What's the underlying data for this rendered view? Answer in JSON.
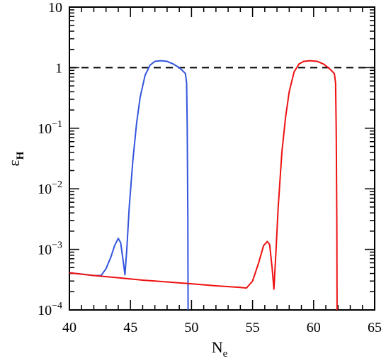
{
  "chart_data": {
    "type": "line",
    "xlabel": {
      "main": "N",
      "sub": "e"
    },
    "ylabel": {
      "main": "ε",
      "sub": "H"
    },
    "xlim": [
      40,
      65
    ],
    "ylim": [
      0.0001,
      10
    ],
    "y_scale": "log",
    "grid": false,
    "x_ticks": [
      {
        "value": 40,
        "label": "40"
      },
      {
        "value": 45,
        "label": "45"
      },
      {
        "value": 50,
        "label": "50"
      },
      {
        "value": 55,
        "label": "55"
      },
      {
        "value": 60,
        "label": "60"
      },
      {
        "value": 65,
        "label": "65"
      }
    ],
    "y_ticks": [
      {
        "value": 0.0001,
        "base": "10",
        "exp": "−4"
      },
      {
        "value": 0.001,
        "base": "10",
        "exp": "−3"
      },
      {
        "value": 0.01,
        "base": "10",
        "exp": "−2"
      },
      {
        "value": 0.1,
        "base": "10",
        "exp": "−1"
      },
      {
        "value": 1,
        "base": "1",
        "exp": ""
      },
      {
        "value": 10,
        "base": "10",
        "exp": ""
      }
    ],
    "reference_line": {
      "y": 1,
      "style": "dashed",
      "color": "#000000"
    },
    "series": [
      {
        "color": "#3355dd",
        "points": [
          [
            40.0,
            0.00041
          ],
          [
            41.0,
            0.00039
          ],
          [
            42.0,
            0.00037
          ],
          [
            42.6,
            0.00037
          ],
          [
            43.0,
            0.00048
          ],
          [
            43.4,
            0.00075
          ],
          [
            43.7,
            0.00115
          ],
          [
            44.0,
            0.00152
          ],
          [
            44.2,
            0.00128
          ],
          [
            44.4,
            0.00065
          ],
          [
            44.55,
            0.00038
          ],
          [
            44.7,
            0.001
          ],
          [
            44.9,
            0.005
          ],
          [
            45.2,
            0.03
          ],
          [
            45.5,
            0.12
          ],
          [
            45.8,
            0.33
          ],
          [
            46.2,
            0.75
          ],
          [
            46.6,
            1.1
          ],
          [
            47.0,
            1.27
          ],
          [
            47.5,
            1.3
          ],
          [
            48.0,
            1.27
          ],
          [
            48.5,
            1.15
          ],
          [
            49.0,
            1.0
          ],
          [
            49.3,
            0.88
          ],
          [
            49.5,
            0.8
          ],
          [
            49.6,
            0.55
          ],
          [
            49.65,
            0.1
          ],
          [
            49.7,
            0.003
          ],
          [
            49.72,
            0.0001
          ]
        ]
      },
      {
        "color": "#ee1111",
        "points": [
          [
            40.0,
            0.00041
          ],
          [
            42.0,
            0.00037
          ],
          [
            44.0,
            0.00034
          ],
          [
            46.0,
            0.00031
          ],
          [
            48.0,
            0.00029
          ],
          [
            50.0,
            0.00027
          ],
          [
            52.0,
            0.00025
          ],
          [
            54.0,
            0.000235
          ],
          [
            54.5,
            0.00023
          ],
          [
            55.0,
            0.0003
          ],
          [
            55.5,
            0.0006
          ],
          [
            55.9,
            0.00115
          ],
          [
            56.2,
            0.00135
          ],
          [
            56.4,
            0.0012
          ],
          [
            56.6,
            0.0005
          ],
          [
            56.75,
            0.00022
          ],
          [
            56.9,
            0.0008
          ],
          [
            57.1,
            0.005
          ],
          [
            57.4,
            0.04
          ],
          [
            57.7,
            0.15
          ],
          [
            58.0,
            0.4
          ],
          [
            58.4,
            0.85
          ],
          [
            58.8,
            1.15
          ],
          [
            59.2,
            1.27
          ],
          [
            59.7,
            1.3
          ],
          [
            60.3,
            1.27
          ],
          [
            60.8,
            1.15
          ],
          [
            61.2,
            1.0
          ],
          [
            61.5,
            0.88
          ],
          [
            61.7,
            0.8
          ],
          [
            61.8,
            0.55
          ],
          [
            61.85,
            0.1
          ],
          [
            61.9,
            0.003
          ],
          [
            61.92,
            0.0001
          ]
        ]
      }
    ]
  }
}
